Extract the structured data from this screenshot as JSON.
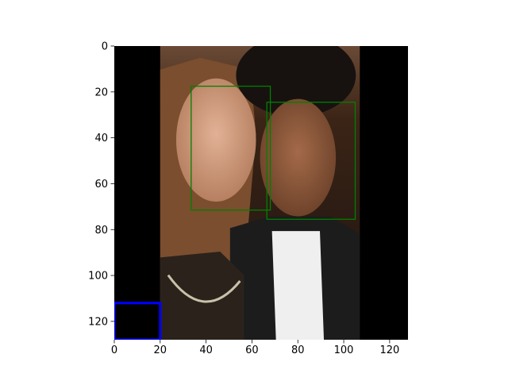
{
  "chart_data": {
    "type": "image",
    "image_size": [
      128,
      128
    ],
    "xlim": [
      0,
      128
    ],
    "ylim": [
      128,
      0
    ],
    "x_ticks": [
      0,
      20,
      40,
      60,
      80,
      100,
      120
    ],
    "y_ticks": [
      0,
      20,
      40,
      60,
      80,
      100,
      120
    ],
    "x_tick_labels": [
      "0",
      "20",
      "40",
      "60",
      "80",
      "100",
      "120"
    ],
    "y_tick_labels": [
      "0",
      "20",
      "40",
      "60",
      "80",
      "100",
      "120"
    ],
    "photo_region": {
      "x": [
        20,
        107
      ],
      "y": [
        0,
        128
      ]
    },
    "padding_color": "#000000",
    "boxes": [
      {
        "color": "#008000",
        "x0": 33.5,
        "y0": 17.5,
        "x1": 68,
        "y1": 71.5
      },
      {
        "color": "#008000",
        "x0": 66.5,
        "y0": 24.5,
        "x1": 105,
        "y1": 75.5
      },
      {
        "color": "#0000ff",
        "x0": 0,
        "y0": 112,
        "x1": 20,
        "y1": 128
      }
    ],
    "grid": false,
    "title": "",
    "xlabel": "",
    "ylabel": ""
  }
}
